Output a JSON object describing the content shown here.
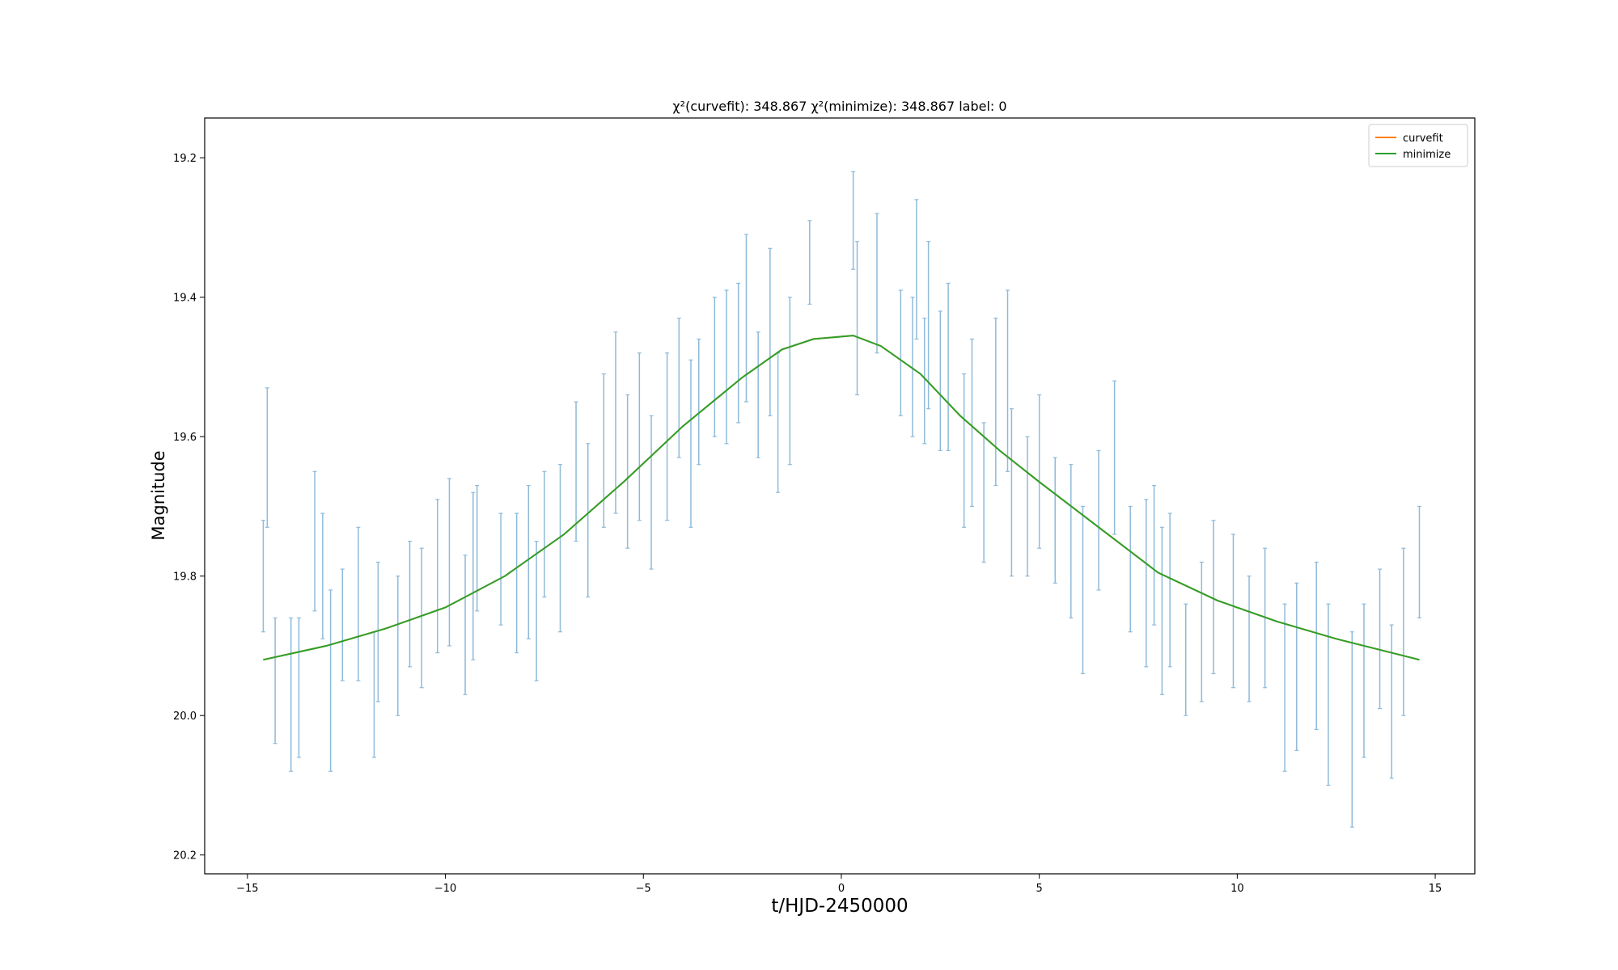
{
  "chart_data": {
    "type": "errorbar-line",
    "title": "χ²(curvefit): 348.867 χ²(minimize): 348.867 label: 0",
    "xlabel": "t/HJD-2450000",
    "ylabel": "Magnitude",
    "xlim": [
      -16.08,
      16.0
    ],
    "ylim": [
      20.227,
      19.143
    ],
    "xticks": [
      {
        "value": -15,
        "label": "−15"
      },
      {
        "value": -10,
        "label": "−10"
      },
      {
        "value": -5,
        "label": "−5"
      },
      0,
      5,
      10,
      15
    ],
    "yticks": [
      19.2,
      19.4,
      19.6,
      19.8,
      {
        "value": 20,
        "label": "20.0"
      },
      20.2
    ],
    "legend": "upper right",
    "errorbar": {
      "color": "#1f77b4",
      "x": [
        -14.6,
        -14.5,
        -14.3,
        -13.9,
        -13.7,
        -13.3,
        -13.1,
        -12.9,
        -12.6,
        -12.2,
        -11.8,
        -11.7,
        -11.2,
        -10.9,
        -10.6,
        -10.2,
        -9.9,
        -9.5,
        -9.3,
        -9.2,
        -8.6,
        -8.2,
        -7.9,
        -7.7,
        -7.5,
        -7.1,
        -6.7,
        -6.4,
        -6.0,
        -5.7,
        -5.4,
        -5.1,
        -4.8,
        -4.4,
        -4.1,
        -3.8,
        -3.6,
        -3.2,
        -2.9,
        -2.6,
        -2.4,
        -2.1,
        -1.8,
        -1.6,
        -1.3,
        -0.8,
        0.3,
        0.4,
        0.9,
        1.5,
        1.8,
        1.9,
        2.1,
        2.2,
        2.5,
        2.7,
        3.1,
        3.3,
        3.6,
        3.9,
        4.2,
        4.3,
        4.7,
        5.0,
        5.4,
        5.8,
        6.1,
        6.5,
        6.9,
        7.3,
        7.7,
        7.9,
        8.1,
        8.3,
        8.7,
        9.1,
        9.4,
        9.9,
        10.3,
        10.7,
        11.2,
        11.5,
        12.0,
        12.3,
        12.9,
        13.2,
        13.6,
        13.9,
        14.2,
        14.6
      ],
      "values": [
        19.8,
        19.63,
        19.95,
        19.97,
        19.96,
        19.75,
        19.8,
        19.95,
        19.87,
        19.84,
        19.97,
        19.88,
        19.9,
        19.84,
        19.86,
        19.8,
        19.78,
        19.87,
        19.8,
        19.76,
        19.79,
        19.81,
        19.78,
        19.85,
        19.74,
        19.76,
        19.65,
        19.72,
        19.62,
        19.58,
        19.65,
        19.6,
        19.68,
        19.6,
        19.53,
        19.61,
        19.55,
        19.5,
        19.5,
        19.48,
        19.43,
        19.54,
        19.45,
        19.58,
        19.52,
        19.35,
        19.29,
        19.43,
        19.38,
        19.48,
        19.5,
        19.36,
        19.52,
        19.44,
        19.52,
        19.5,
        19.62,
        19.58,
        19.68,
        19.55,
        19.52,
        19.68,
        19.7,
        19.65,
        19.72,
        19.75,
        19.82,
        19.72,
        19.63,
        19.79,
        19.81,
        19.77,
        19.85,
        19.82,
        19.92,
        19.88,
        19.83,
        19.85,
        19.89,
        19.86,
        19.96,
        19.93,
        19.9,
        19.97,
        20.02,
        19.95,
        19.89,
        19.98,
        19.88,
        19.78
      ],
      "errors": [
        0.08,
        0.1,
        0.09,
        0.11,
        0.1,
        0.1,
        0.09,
        0.13,
        0.08,
        0.11,
        0.09,
        0.1,
        0.1,
        0.09,
        0.1,
        0.11,
        0.12,
        0.1,
        0.12,
        0.09,
        0.08,
        0.1,
        0.11,
        0.1,
        0.09,
        0.12,
        0.1,
        0.11,
        0.11,
        0.13,
        0.11,
        0.12,
        0.11,
        0.12,
        0.1,
        0.12,
        0.09,
        0.1,
        0.11,
        0.1,
        0.12,
        0.09,
        0.12,
        0.1,
        0.12,
        0.06,
        0.07,
        0.11,
        0.1,
        0.09,
        0.1,
        0.1,
        0.09,
        0.12,
        0.1,
        0.12,
        0.11,
        0.12,
        0.1,
        0.12,
        0.13,
        0.12,
        0.1,
        0.11,
        0.09,
        0.11,
        0.12,
        0.1,
        0.11,
        0.09,
        0.12,
        0.1,
        0.12,
        0.11,
        0.08,
        0.1,
        0.11,
        0.11,
        0.09,
        0.1,
        0.12,
        0.12,
        0.12,
        0.13,
        0.14,
        0.11,
        0.1,
        0.11,
        0.12,
        0.08
      ]
    },
    "series": [
      {
        "name": "curvefit",
        "color": "#ff7f0e",
        "x": [
          -14.6,
          -13,
          -11.5,
          -10,
          -8.5,
          -7,
          -5.5,
          -4,
          -2.5,
          -1.5,
          -0.7,
          0.3,
          1,
          2,
          3,
          4,
          5,
          6.5,
          8,
          9.5,
          11,
          12.5,
          14.6
        ],
        "values": [
          19.92,
          19.9,
          19.875,
          19.845,
          19.8,
          19.74,
          19.665,
          19.585,
          19.515,
          19.475,
          19.46,
          19.455,
          19.47,
          19.51,
          19.57,
          19.62,
          19.665,
          19.73,
          19.795,
          19.835,
          19.865,
          19.89,
          19.92
        ]
      },
      {
        "name": "minimize",
        "color": "#2ca02c",
        "x": [
          -14.6,
          -13,
          -11.5,
          -10,
          -8.5,
          -7,
          -5.5,
          -4,
          -2.5,
          -1.5,
          -0.7,
          0.3,
          1,
          2,
          3,
          4,
          5,
          6.5,
          8,
          9.5,
          11,
          12.5,
          14.6
        ],
        "values": [
          19.92,
          19.9,
          19.875,
          19.845,
          19.8,
          19.74,
          19.665,
          19.585,
          19.515,
          19.475,
          19.46,
          19.455,
          19.47,
          19.51,
          19.57,
          19.62,
          19.665,
          19.73,
          19.795,
          19.835,
          19.865,
          19.89,
          19.92
        ]
      }
    ]
  }
}
